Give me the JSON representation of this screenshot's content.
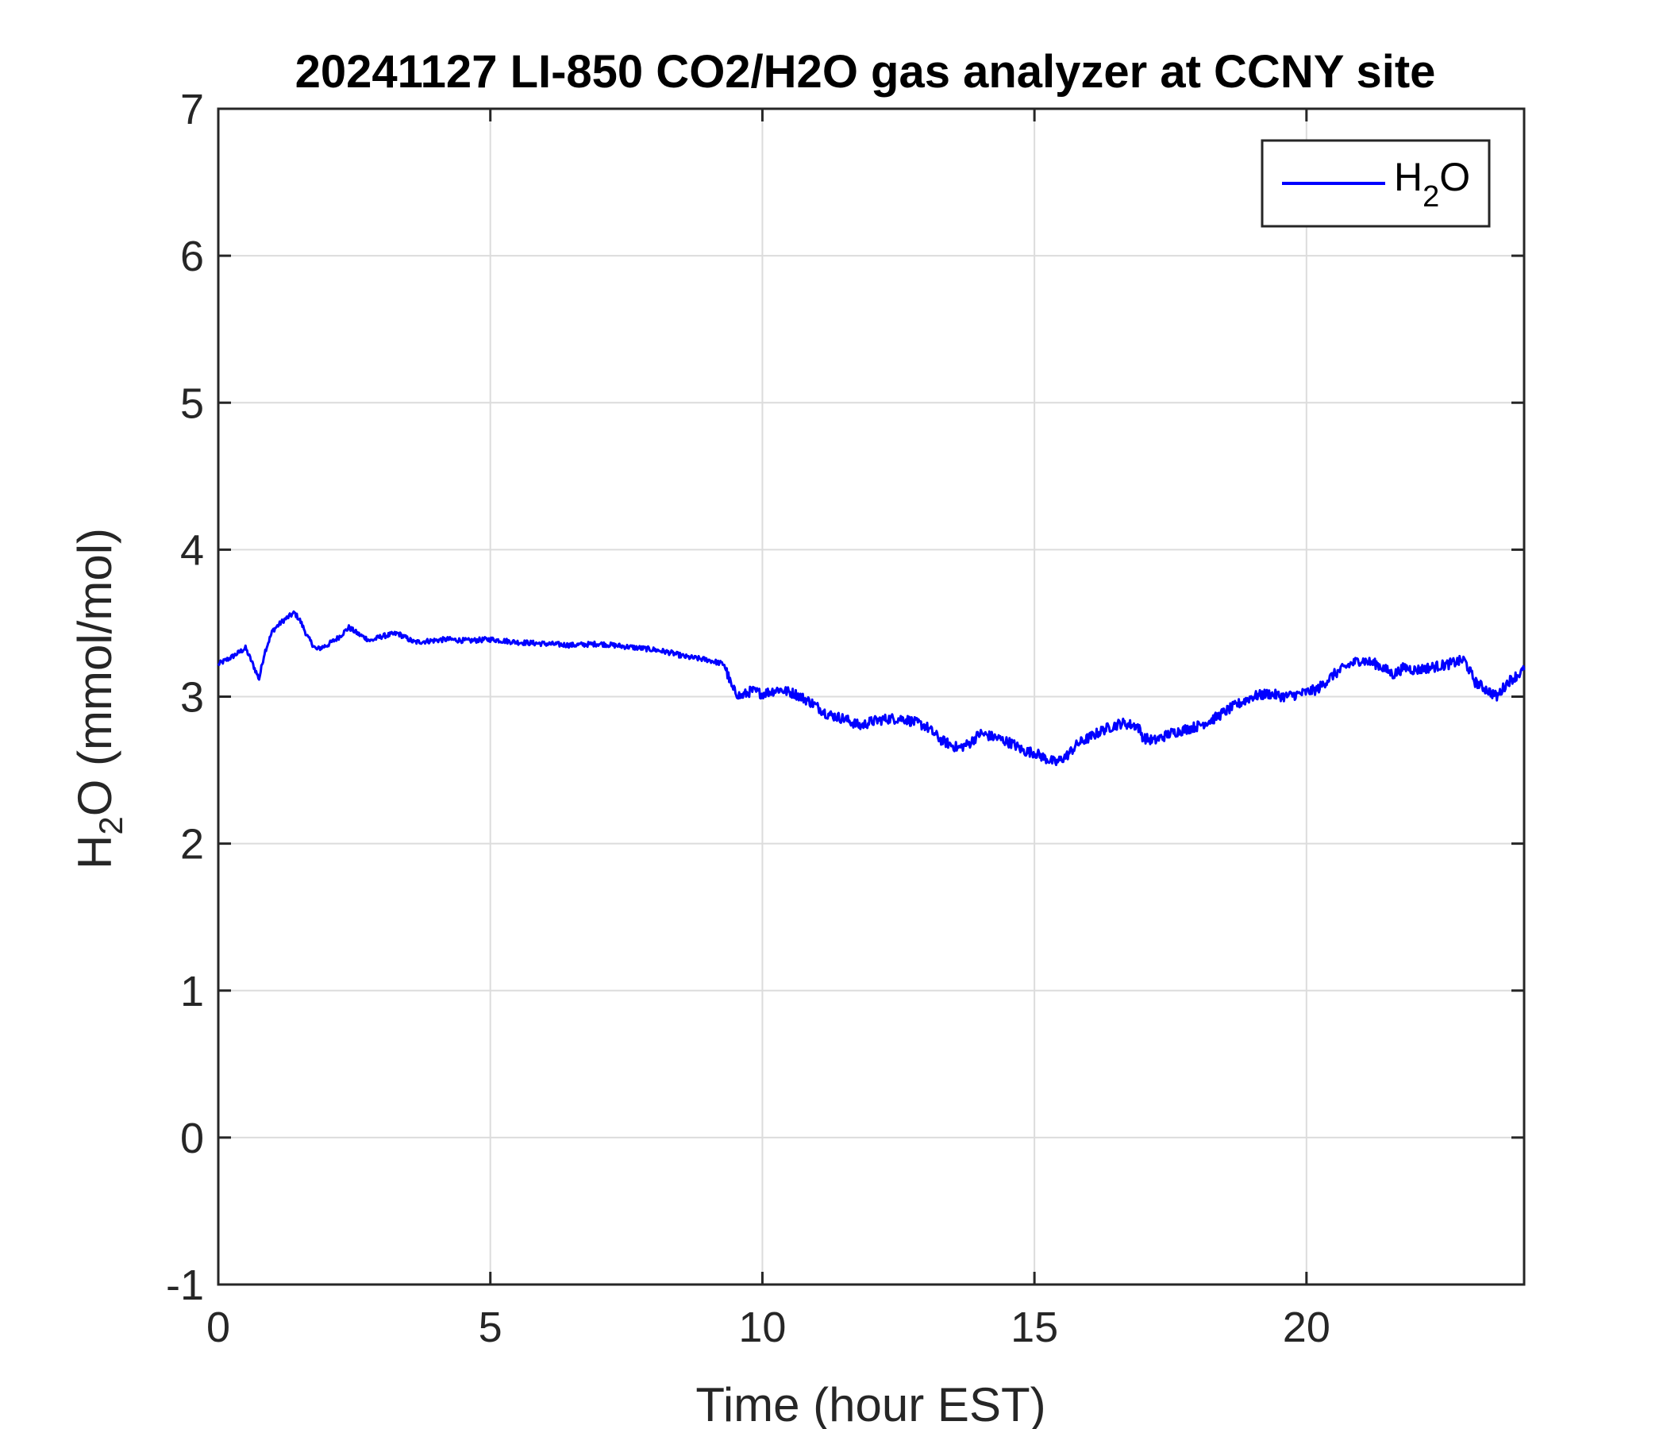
{
  "chart_data": {
    "type": "line",
    "title": "20241127 LI-850 CO2/H2O gas analyzer at CCNY site",
    "xlabel": "Time (hour EST)",
    "ylabel": {
      "base": "H",
      "sub": "2",
      "rest": "O (mmol/mol)"
    },
    "xlim": [
      0,
      24
    ],
    "ylim": [
      -1,
      7
    ],
    "xticks": [
      0,
      5,
      10,
      15,
      20
    ],
    "xtick_labels": [
      "0",
      "5",
      "10",
      "15",
      "20"
    ],
    "yticks": [
      -1,
      0,
      1,
      2,
      3,
      4,
      5,
      6,
      7
    ],
    "ytick_labels": [
      "-1",
      "0",
      "1",
      "2",
      "3",
      "4",
      "5",
      "6",
      "7"
    ],
    "grid": true,
    "legend_position": "top-right",
    "series": [
      {
        "name": {
          "base": "H",
          "sub": "2",
          "rest": "O"
        },
        "color": "#0000FF",
        "x": [
          0.0,
          0.25,
          0.5,
          0.6,
          0.75,
          0.85,
          1.0,
          1.2,
          1.4,
          1.5,
          1.65,
          1.8,
          2.0,
          2.2,
          2.4,
          2.6,
          2.8,
          3.0,
          3.3,
          3.6,
          3.9,
          4.2,
          4.6,
          5.0,
          5.5,
          6.0,
          6.5,
          7.0,
          7.5,
          8.0,
          8.3,
          8.6,
          9.0,
          9.3,
          9.45,
          9.6,
          9.8,
          10.0,
          10.3,
          10.6,
          10.9,
          11.2,
          11.5,
          11.8,
          12.0,
          12.3,
          12.6,
          13.0,
          13.3,
          13.6,
          13.8,
          14.0,
          14.3,
          14.6,
          14.8,
          15.0,
          15.2,
          15.4,
          15.6,
          15.8,
          16.0,
          16.3,
          16.6,
          16.9,
          17.0,
          17.2,
          17.5,
          17.8,
          18.0,
          18.3,
          18.6,
          18.9,
          19.0,
          19.3,
          19.6,
          19.9,
          20.2,
          20.5,
          20.8,
          21.0,
          21.3,
          21.6,
          21.8,
          22.0,
          22.3,
          22.6,
          22.9,
          23.1,
          23.3,
          23.5,
          23.7,
          24.0
        ],
        "values": [
          3.22,
          3.27,
          3.33,
          3.25,
          3.12,
          3.3,
          3.45,
          3.52,
          3.57,
          3.52,
          3.4,
          3.32,
          3.35,
          3.4,
          3.47,
          3.42,
          3.38,
          3.41,
          3.43,
          3.37,
          3.38,
          3.39,
          3.38,
          3.39,
          3.37,
          3.36,
          3.35,
          3.36,
          3.34,
          3.32,
          3.3,
          3.27,
          3.25,
          3.22,
          3.05,
          3.0,
          3.04,
          3.02,
          3.05,
          3.02,
          2.96,
          2.88,
          2.85,
          2.8,
          2.83,
          2.85,
          2.85,
          2.8,
          2.7,
          2.65,
          2.68,
          2.75,
          2.72,
          2.68,
          2.63,
          2.62,
          2.58,
          2.55,
          2.6,
          2.68,
          2.72,
          2.78,
          2.82,
          2.8,
          2.72,
          2.7,
          2.75,
          2.78,
          2.8,
          2.85,
          2.92,
          2.98,
          3.0,
          3.02,
          3.0,
          3.02,
          3.05,
          3.15,
          3.22,
          3.25,
          3.22,
          3.15,
          3.2,
          3.18,
          3.2,
          3.22,
          3.25,
          3.1,
          3.05,
          3.0,
          3.1,
          3.18
        ]
      }
    ]
  }
}
